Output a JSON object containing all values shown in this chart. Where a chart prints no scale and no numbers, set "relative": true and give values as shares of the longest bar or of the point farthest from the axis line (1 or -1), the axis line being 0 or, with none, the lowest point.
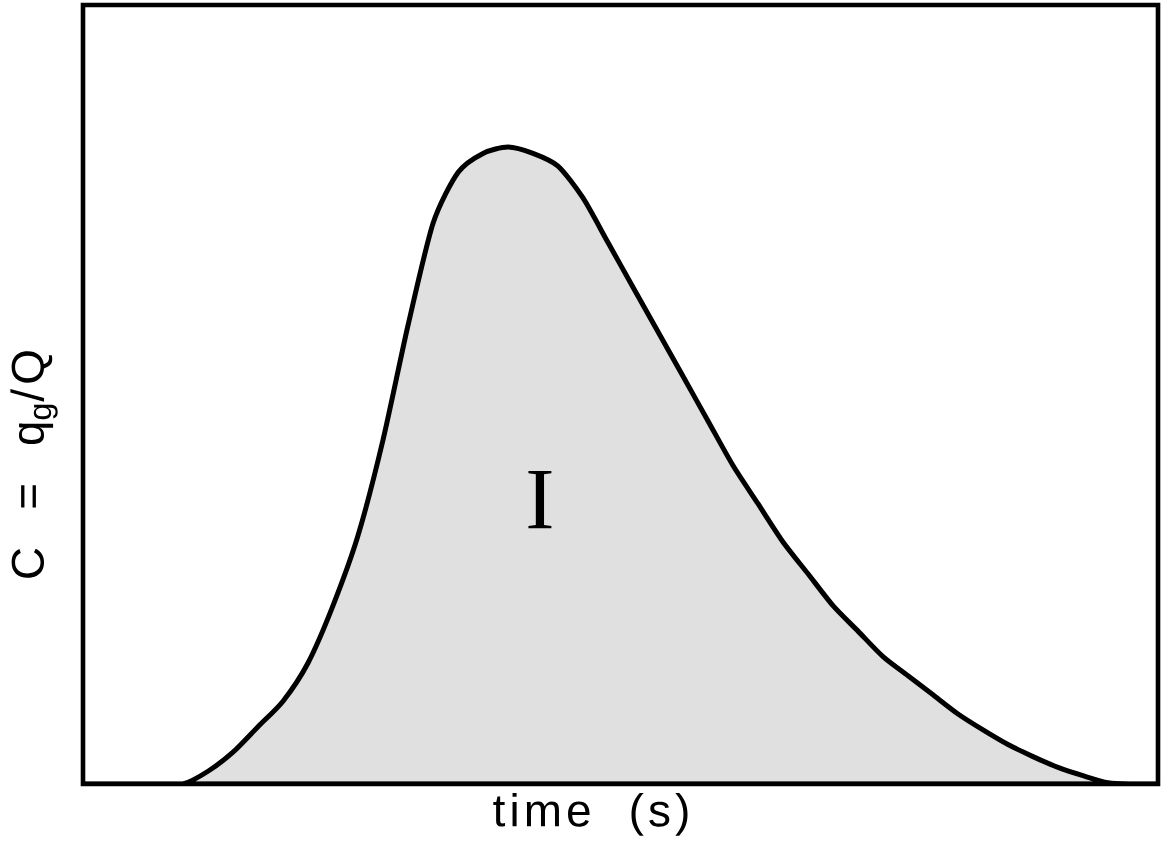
{
  "chart_data": {
    "type": "area",
    "relative": true,
    "xlabel": "time (s)",
    "ylabel": "C = q$_{g}$/Q",
    "annotations": [
      "I"
    ],
    "color": "#000000",
    "categories": [
      null,
      null,
      null,
      null,
      null,
      null,
      null,
      null,
      null,
      null,
      null,
      null,
      null,
      null,
      null,
      null,
      null,
      null,
      null,
      null,
      null,
      null,
      null,
      null,
      null,
      null,
      null,
      null,
      null,
      null,
      null,
      null,
      null,
      null,
      null,
      null,
      null,
      null,
      null,
      null,
      null,
      null,
      null,
      null
    ],
    "values": [
      0,
      0,
      0,
      0,
      0,
      0.02,
      0.05,
      0.09,
      0.13,
      0.19,
      0.28,
      0.39,
      0.54,
      0.72,
      0.88,
      0.96,
      0.99,
      1,
      0.99,
      0.97,
      0.92,
      0.85,
      0.78,
      0.71,
      0.64,
      0.57,
      0.5,
      0.44,
      0.38,
      0.33,
      0.28,
      0.24,
      0.2,
      0.17,
      0.14,
      0.11,
      0.085,
      0.062,
      0.043,
      0.026,
      0.013,
      0.002,
      0,
      0
    ]
  }
}
